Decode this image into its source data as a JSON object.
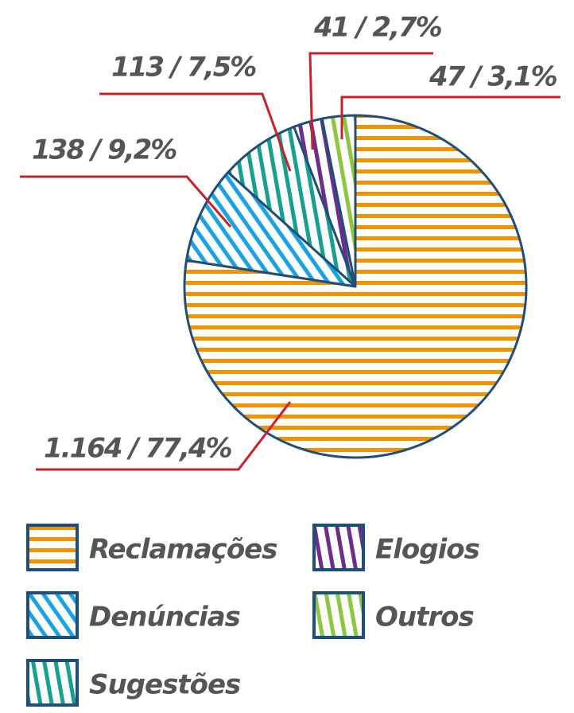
{
  "chart_data": {
    "type": "pie",
    "categories": [
      "Reclamações",
      "Denúncias",
      "Sugestões",
      "Elogios",
      "Outros"
    ],
    "values": [
      1164,
      138,
      113,
      41,
      47
    ],
    "value_labels": [
      "1.164 / 77,4%",
      "138 / 9,2%",
      "113 / 7,5%",
      "41 / 2,7%",
      "47 / 3,1%"
    ],
    "colors": [
      "#f39200",
      "#1aa3e0",
      "#17a08f",
      "#6e2c8c",
      "#8dc63f"
    ]
  }
}
